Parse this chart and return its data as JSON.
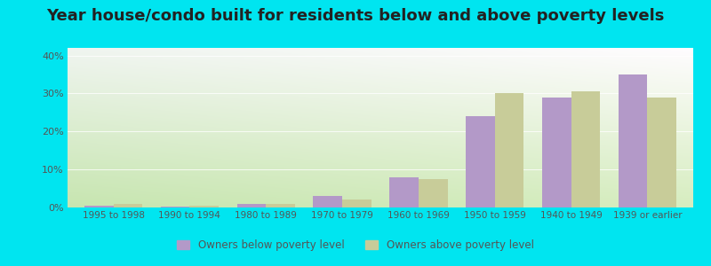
{
  "title": "Year house/condo built for residents below and above poverty levels",
  "categories": [
    "1995 to 1998",
    "1990 to 1994",
    "1980 to 1989",
    "1970 to 1979",
    "1960 to 1969",
    "1950 to 1959",
    "1940 to 1949",
    "1939 or earlier"
  ],
  "below_poverty": [
    0.5,
    0.3,
    1.0,
    3.0,
    8.0,
    24.0,
    29.0,
    35.0
  ],
  "above_poverty": [
    1.0,
    0.4,
    1.0,
    2.0,
    7.5,
    30.0,
    30.5,
    29.0
  ],
  "below_color": "#b399c8",
  "above_color": "#c8cc99",
  "ylim": [
    0,
    42
  ],
  "yticks": [
    0,
    10,
    20,
    30,
    40
  ],
  "ytick_labels": [
    "0%",
    "10%",
    "20%",
    "30%",
    "40%"
  ],
  "bg_left_bottom": "#d4efc0",
  "bg_left_top": "#e8f8e8",
  "bg_right_top": "#f5f5f5",
  "bg_right_bottom": "#e8f5e8",
  "outer_background": "#00e5f0",
  "title_fontsize": 13,
  "bar_width": 0.38,
  "legend_below_label": "Owners below poverty level",
  "legend_above_label": "Owners above poverty level",
  "gridline_color": "#e0e8e0",
  "tick_color": "#888888",
  "label_color": "#555555"
}
